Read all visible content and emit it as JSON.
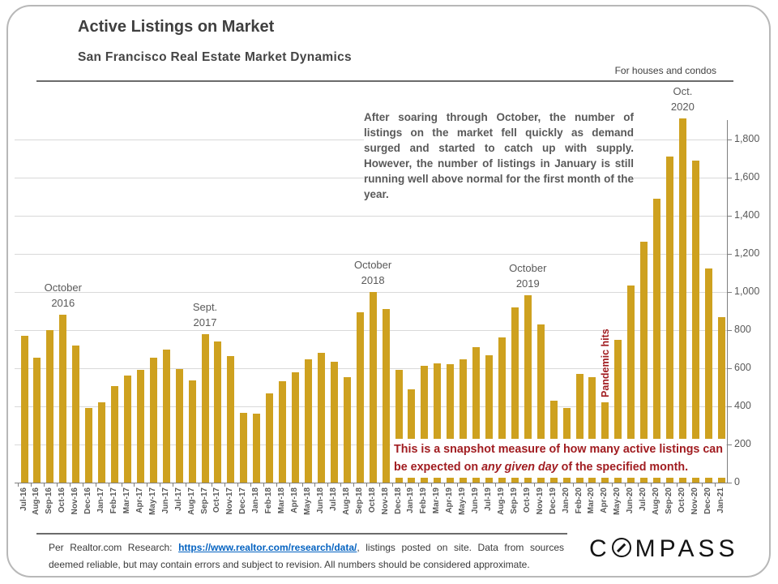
{
  "slide": {
    "title": "Active Listings on Market",
    "subtitle": "San Francisco Real Estate Market Dynamics",
    "scope_note": "For houses and condos",
    "commentary": "After soaring through October, the number of listings on the market fell quickly as demand surged and started to catch up with supply. However, the number of listings in January is still running well above normal for the first month of the year.",
    "snapshot_note": {
      "part1": "This is a snapshot measure of how many active listings can be expected on ",
      "em": "any given day",
      "part2": " of the specified month."
    },
    "footer": {
      "prefix": "Per Realtor.com Research: ",
      "link": "https://www.realtor.com/research/data/",
      "suffix": ", listings posted on site. Data from sources deemed reliable, but may contain errors and subject to revision. All numbers should be considered approximate."
    },
    "logo": {
      "c": "C",
      "rest": "MPASS"
    }
  },
  "chart_data": {
    "type": "bar",
    "title": "Active Listings on Market — San Francisco",
    "xlabel": "",
    "ylabel": "",
    "ylim": [
      0,
      1900
    ],
    "grid": true,
    "axis_side": "right",
    "bar_color": "#CEA11F",
    "accent_red": "#A11D21",
    "y_ticks": [
      "0",
      "200",
      "400",
      "600",
      "800",
      "1,000",
      "1,200",
      "1,400",
      "1,600",
      "1,800"
    ],
    "categories": [
      "Jul-16",
      "Aug-16",
      "Sep-16",
      "Oct-16",
      "Nov-16",
      "Dec-16",
      "Jan-17",
      "Feb-17",
      "Mar-17",
      "Apr-17",
      "May-17",
      "Jun-17",
      "Jul-17",
      "Aug-17",
      "Sep-17",
      "Oct-17",
      "Nov-17",
      "Dec-17",
      "Jan-18",
      "Feb-18",
      "Mar-18",
      "Apr-18",
      "May-18",
      "Jun-18",
      "Jul-18",
      "Aug-18",
      "Sep-18",
      "Oct-18",
      "Nov-18",
      "Dec-18",
      "Jan-19",
      "Feb-19",
      "Mar-19",
      "Apr-19",
      "May-19",
      "Jun-19",
      "Jul-19",
      "Aug-19",
      "Sep-19",
      "Oct-19",
      "Nov-19",
      "Dec-19",
      "Jan-20",
      "Feb-20",
      "Mar-20",
      "Apr-20",
      "May-20",
      "Jun-20",
      "Jul-20",
      "Aug-20",
      "Sep-20",
      "Oct-20",
      "Nov-20",
      "Dec-20",
      "Jan-21"
    ],
    "values": [
      770,
      655,
      800,
      880,
      720,
      390,
      420,
      505,
      560,
      590,
      655,
      700,
      595,
      535,
      780,
      740,
      665,
      365,
      360,
      470,
      530,
      580,
      645,
      680,
      635,
      555,
      895,
      1000,
      910,
      590,
      490,
      615,
      625,
      620,
      645,
      710,
      670,
      760,
      920,
      985,
      830,
      430,
      390,
      570,
      555,
      420,
      750,
      1035,
      1265,
      1490,
      1710,
      1910,
      1690,
      1125,
      870
    ],
    "annotations": [
      {
        "line1": "October",
        "line2": "2016",
        "category": "Oct-16"
      },
      {
        "line1": "Sept.",
        "line2": "2017",
        "category": "Sep-17"
      },
      {
        "line1": "October",
        "line2": "2018",
        "category": "Oct-18"
      },
      {
        "line1": "October",
        "line2": "2019",
        "category": "Oct-19"
      },
      {
        "line1": "Oct.",
        "line2": "2020",
        "category": "Oct-20"
      }
    ],
    "pandemic_label": "Pandemic hits",
    "pandemic_anchor": "Apr-20"
  }
}
